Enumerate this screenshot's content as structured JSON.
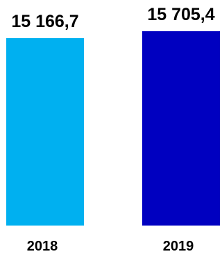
{
  "chart_data": {
    "type": "bar",
    "categories": [
      "2018",
      "2019"
    ],
    "values": [
      15166.7,
      15705.4
    ],
    "value_labels": [
      "15 166,7",
      "15 705,4"
    ],
    "colors": [
      "#00b0f0",
      "#0000c0"
    ],
    "title": "",
    "xlabel": "",
    "ylabel": "",
    "grid": false,
    "legend": "none"
  }
}
